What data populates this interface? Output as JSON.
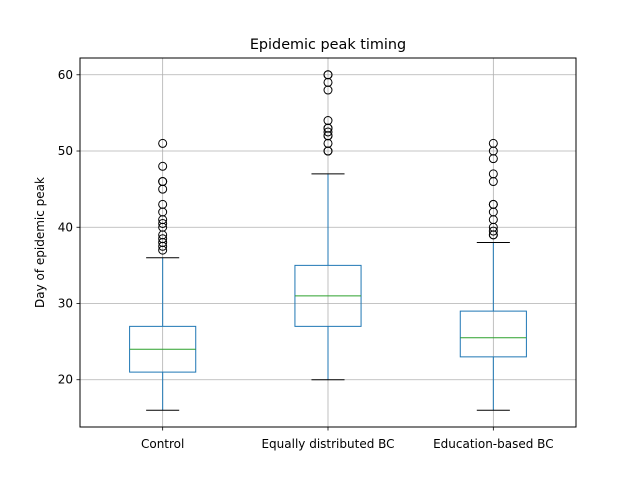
{
  "chart_data": {
    "type": "box",
    "title": "Epidemic peak timing",
    "xlabel": "",
    "ylabel": "Day of epidemic peak",
    "ylim": [
      13.8,
      62.2
    ],
    "yticks": [
      20,
      30,
      40,
      50,
      60
    ],
    "grid": true,
    "categories": [
      "Control",
      "Equally distributed BC",
      "Education-based BC"
    ],
    "boxes": [
      {
        "name": "Control",
        "whisker_low": 16,
        "q1": 21,
        "median": 24,
        "q3": 27,
        "whisker_high": 36,
        "outliers": [
          37,
          37.5,
          38,
          38.5,
          39,
          40,
          40.5,
          41,
          42,
          43,
          45,
          46,
          46,
          48,
          51
        ]
      },
      {
        "name": "Equally distributed BC",
        "whisker_low": 20,
        "q1": 27,
        "median": 31,
        "q3": 35,
        "whisker_high": 47,
        "outliers": [
          50,
          50,
          51,
          52,
          52,
          52.5,
          53,
          53,
          54,
          58,
          59,
          60,
          60
        ]
      },
      {
        "name": "Education-based BC",
        "whisker_low": 16,
        "q1": 23,
        "median": 25.5,
        "q3": 29,
        "whisker_high": 38,
        "outliers": [
          39,
          39,
          39.5,
          40,
          41,
          42,
          43,
          43,
          46,
          47,
          49,
          50,
          51
        ]
      }
    ],
    "colors": {
      "box": "#1f77b4",
      "whisker": "#1f77b4",
      "cap": "#000000",
      "median": "#2ca02c",
      "outlier": "#000000",
      "grid": "#b0b0b0",
      "axes": "#000000"
    }
  }
}
